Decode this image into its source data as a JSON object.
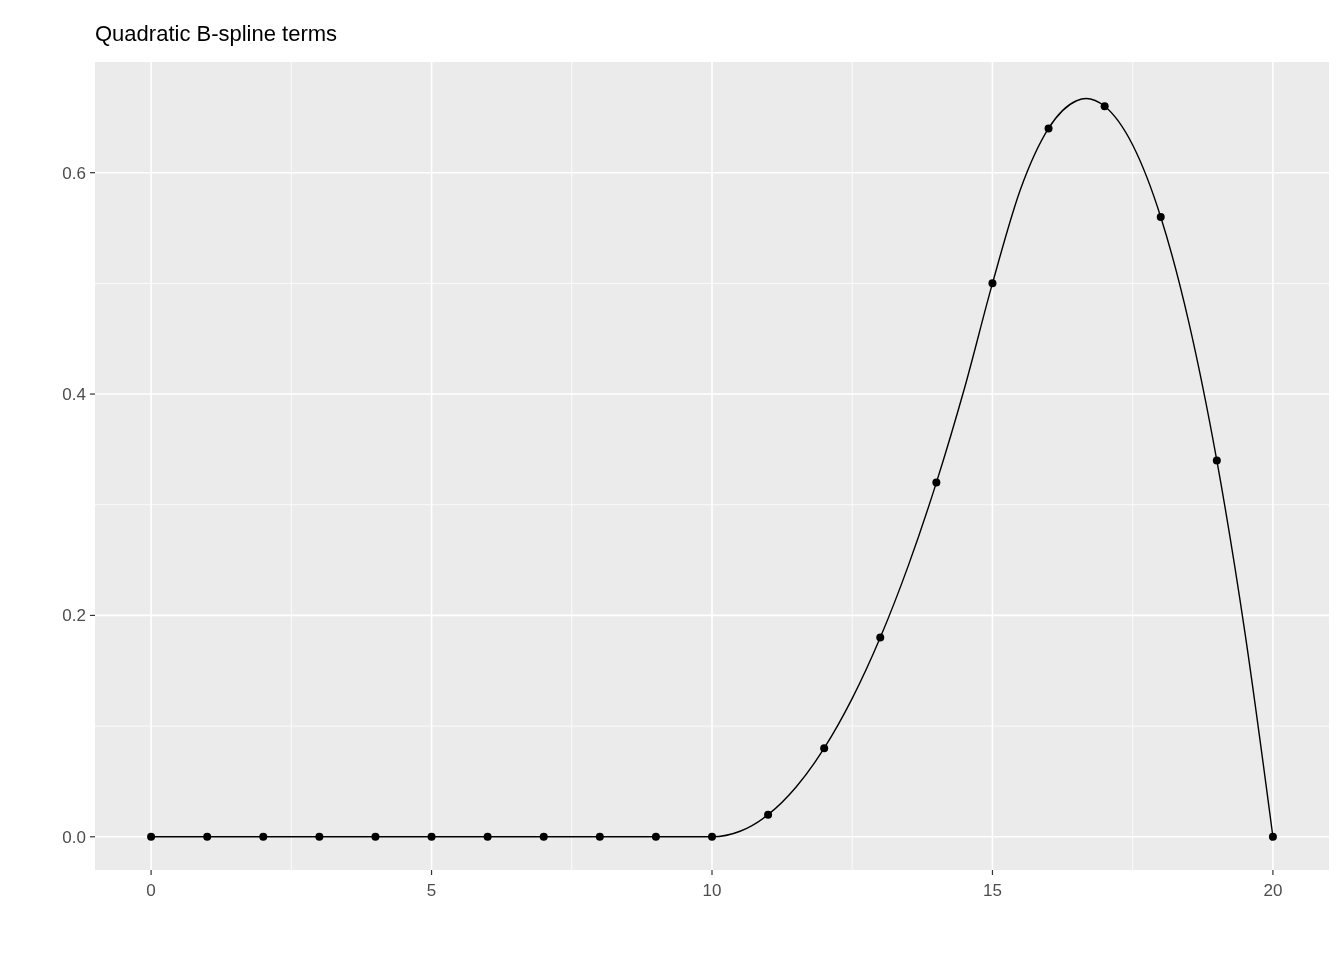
{
  "chart_data": {
    "type": "line",
    "title": "Quadratic B-spline terms",
    "xlim": [
      -1,
      21
    ],
    "ylim": [
      -0.03,
      0.7
    ],
    "xticks": [
      0,
      {
        "value": 2.5,
        "label": null
      },
      5,
      {
        "value": 7.5,
        "label": null
      },
      10,
      {
        "value": 12.5,
        "label": null
      },
      15,
      {
        "value": 17.5,
        "label": null
      },
      20
    ],
    "yticks": [
      {
        "value": 0,
        "label": "0.0"
      },
      {
        "value": 0.1,
        "label": null
      },
      {
        "value": 0.2,
        "label": "0.2"
      },
      {
        "value": 0.3,
        "label": null
      },
      {
        "value": 0.4,
        "label": "0.4"
      },
      {
        "value": 0.5,
        "label": null
      },
      {
        "value": 0.6,
        "label": "0.6"
      }
    ],
    "grid": true,
    "series": [
      {
        "color": "#000000",
        "marker": "none",
        "line_style": "solid",
        "x": [
          0,
          10,
          10.5,
          11,
          11.5,
          12,
          12.5,
          13,
          13.5,
          14,
          14.5,
          15,
          15.5,
          16,
          16.5,
          16.67,
          17,
          17.5,
          18,
          18.5,
          19,
          19.5,
          20
        ],
        "values": [
          0,
          0,
          0.005,
          0.02,
          0.045,
          0.08,
          0.125,
          0.18,
          0.245,
          0.32,
          0.405,
          0.5,
          0.585,
          0.64,
          0.665,
          0.667,
          0.66,
          0.625,
          0.56,
          0.465,
          0.34,
          0.185,
          0
        ]
      },
      {
        "type": "scatter",
        "color": "#000000",
        "marker": "circle",
        "x": [
          0,
          1,
          2,
          3,
          4,
          5,
          6,
          7,
          8,
          9,
          10,
          11,
          12,
          13,
          14,
          15,
          16,
          17,
          18,
          19,
          20
        ],
        "values": [
          0,
          0,
          0,
          0,
          0,
          0,
          0,
          0,
          0,
          0,
          0,
          0.02,
          0.08,
          0.18,
          0.32,
          0.5,
          0.64,
          0.66,
          0.56,
          0.34,
          0
        ]
      }
    ]
  }
}
